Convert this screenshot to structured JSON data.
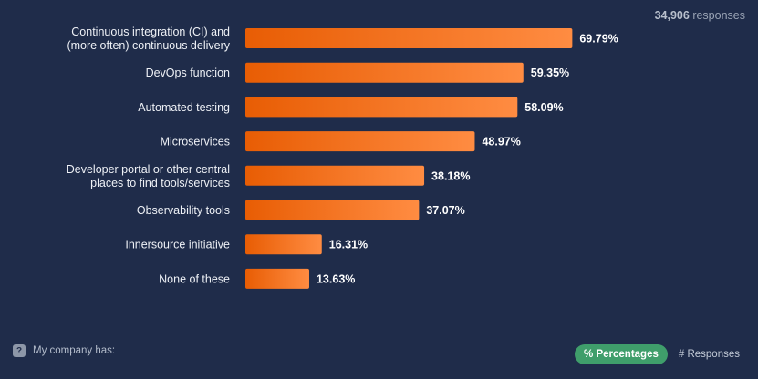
{
  "header": {
    "responses_count": "34,906",
    "responses_label": "responses"
  },
  "chart_data": {
    "type": "bar",
    "orientation": "horizontal",
    "categories": [
      [
        "Continuous integration (CI) and",
        "(more often) continuous delivery"
      ],
      [
        "DevOps function"
      ],
      [
        "Automated testing"
      ],
      [
        "Microservices"
      ],
      [
        "Developer portal or other central",
        "places to find tools/services"
      ],
      [
        "Observability tools"
      ],
      [
        "Innersource initiative"
      ],
      [
        "None of these"
      ]
    ],
    "values": [
      69.79,
      59.35,
      58.09,
      48.97,
      38.18,
      37.07,
      16.31,
      13.63
    ],
    "value_labels": [
      "69.79%",
      "59.35%",
      "58.09%",
      "48.97%",
      "38.18%",
      "37.07%",
      "16.31%",
      "13.63%"
    ],
    "xlim": [
      0,
      100
    ],
    "bar_color_start": "#e85d04",
    "bar_color_end": "#ff8c42"
  },
  "footer": {
    "question_icon": "question-icon",
    "question_text": "My company has:",
    "toggle_active": "% Percentages",
    "toggle_inactive": "# Responses",
    "toggle_active_color": "#3f9e6b"
  }
}
